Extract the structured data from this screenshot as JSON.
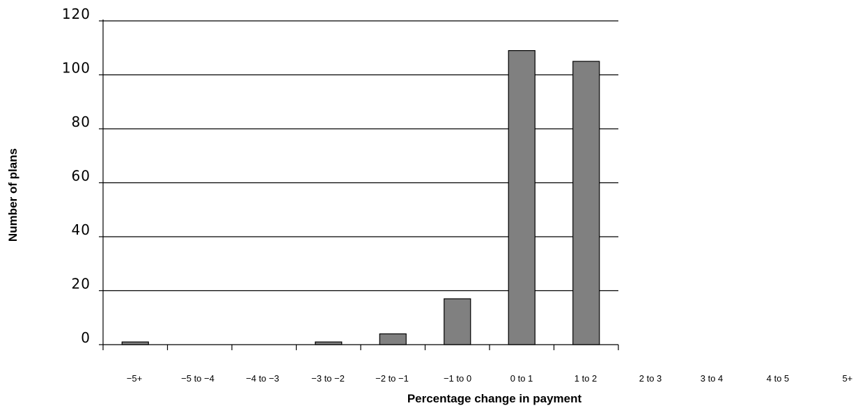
{
  "chart_data": {
    "type": "bar",
    "title": "",
    "xlabel": "Percentage change in payment",
    "ylabel": "Number of plans",
    "categories": [
      "−5+",
      "−5 to −4",
      "−4 to −3",
      "−3 to −2",
      "−2 to −1",
      "−1 to 0",
      "0 to 1",
      "1 to 2",
      "2 to 3",
      "3 to 4",
      "4 to 5",
      "5+"
    ],
    "values": [
      1,
      0,
      0,
      1,
      4,
      17,
      109,
      105,
      0,
      0,
      0,
      0
    ],
    "ylim": [
      0,
      120
    ],
    "yticks": [
      "0",
      "20",
      "40",
      "60",
      "80",
      "100",
      "120"
    ],
    "grid": true,
    "bar_color": "#808080"
  }
}
